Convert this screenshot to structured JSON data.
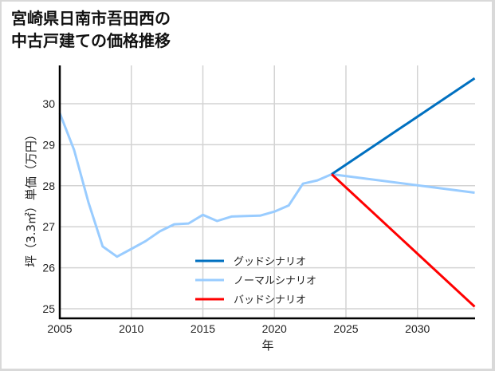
{
  "title": {
    "line1": "宮崎県日南市吾田西の",
    "line2": "中古戸建ての価格推移"
  },
  "colors": {
    "good": "#0070c0",
    "normal": "#99ccff",
    "bad": "#ff0000",
    "grid": "#d3d3d3",
    "axis": "#000000"
  },
  "chart_data": {
    "type": "line",
    "title": "宮崎県日南市吾田西の中古戸建ての価格推移",
    "xlabel": "年",
    "ylabel": "坪（3.3㎡）単価（万円）",
    "xlim": [
      2005,
      2034
    ],
    "ylim": [
      24.75,
      31.0
    ],
    "xticks": [
      2005,
      2010,
      2015,
      2020,
      2025,
      2030
    ],
    "yticks": [
      25,
      26,
      27,
      28,
      29,
      30
    ],
    "grid": true,
    "legend_position": "lower center (inside plot)",
    "series": [
      {
        "name": "グッドシナリオ",
        "color": "#0070c0",
        "x": [
          2024,
          2034
        ],
        "values": [
          28.28,
          30.62
        ]
      },
      {
        "name": "ノーマルシナリオ",
        "color": "#99ccff",
        "x": [
          2005,
          2006,
          2007,
          2008,
          2009,
          2010,
          2011,
          2012,
          2013,
          2014,
          2015,
          2016,
          2017,
          2018,
          2019,
          2020,
          2021,
          2022,
          2023,
          2024,
          2034
        ],
        "values": [
          29.77,
          28.87,
          27.6,
          26.52,
          26.27,
          26.46,
          26.65,
          26.89,
          27.06,
          27.08,
          27.29,
          27.14,
          27.25,
          27.26,
          27.27,
          27.37,
          27.52,
          28.05,
          28.13,
          28.28,
          27.83
        ]
      },
      {
        "name": "バッドシナリオ",
        "color": "#ff0000",
        "x": [
          2024,
          2034
        ],
        "values": [
          28.28,
          25.05
        ]
      }
    ]
  },
  "legend": [
    {
      "label": "グッドシナリオ",
      "color": "#0070c0"
    },
    {
      "label": "ノーマルシナリオ",
      "color": "#99ccff"
    },
    {
      "label": "バッドシナリオ",
      "color": "#ff0000"
    }
  ]
}
